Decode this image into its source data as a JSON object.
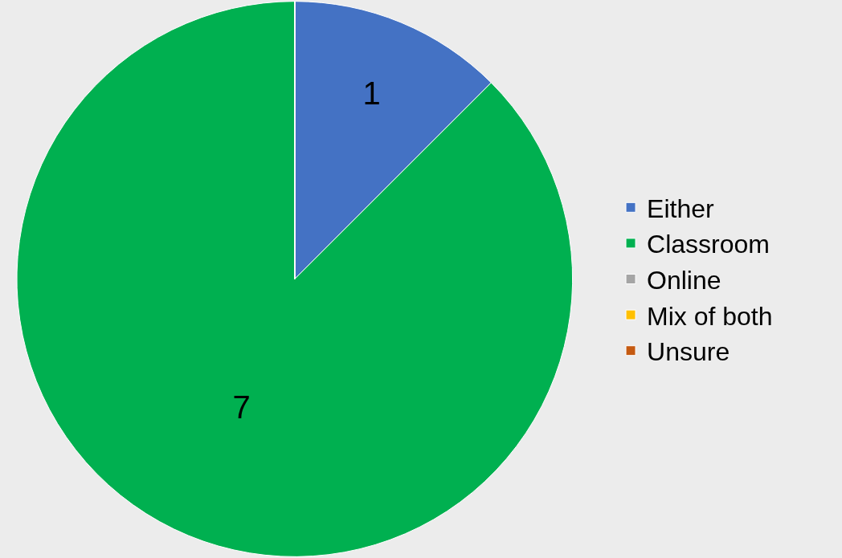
{
  "chart_data": {
    "type": "pie",
    "categories": [
      "Either",
      "Classroom",
      "Online",
      "Mix of both",
      "Unsure"
    ],
    "values": [
      1,
      7,
      0,
      0,
      0
    ],
    "colors": [
      "#4472c4",
      "#00b050",
      "#a5a5a5",
      "#ffc000",
      "#c55a11"
    ],
    "value_labels": [
      "1",
      "7",
      null,
      null,
      null
    ],
    "legend": "right"
  }
}
